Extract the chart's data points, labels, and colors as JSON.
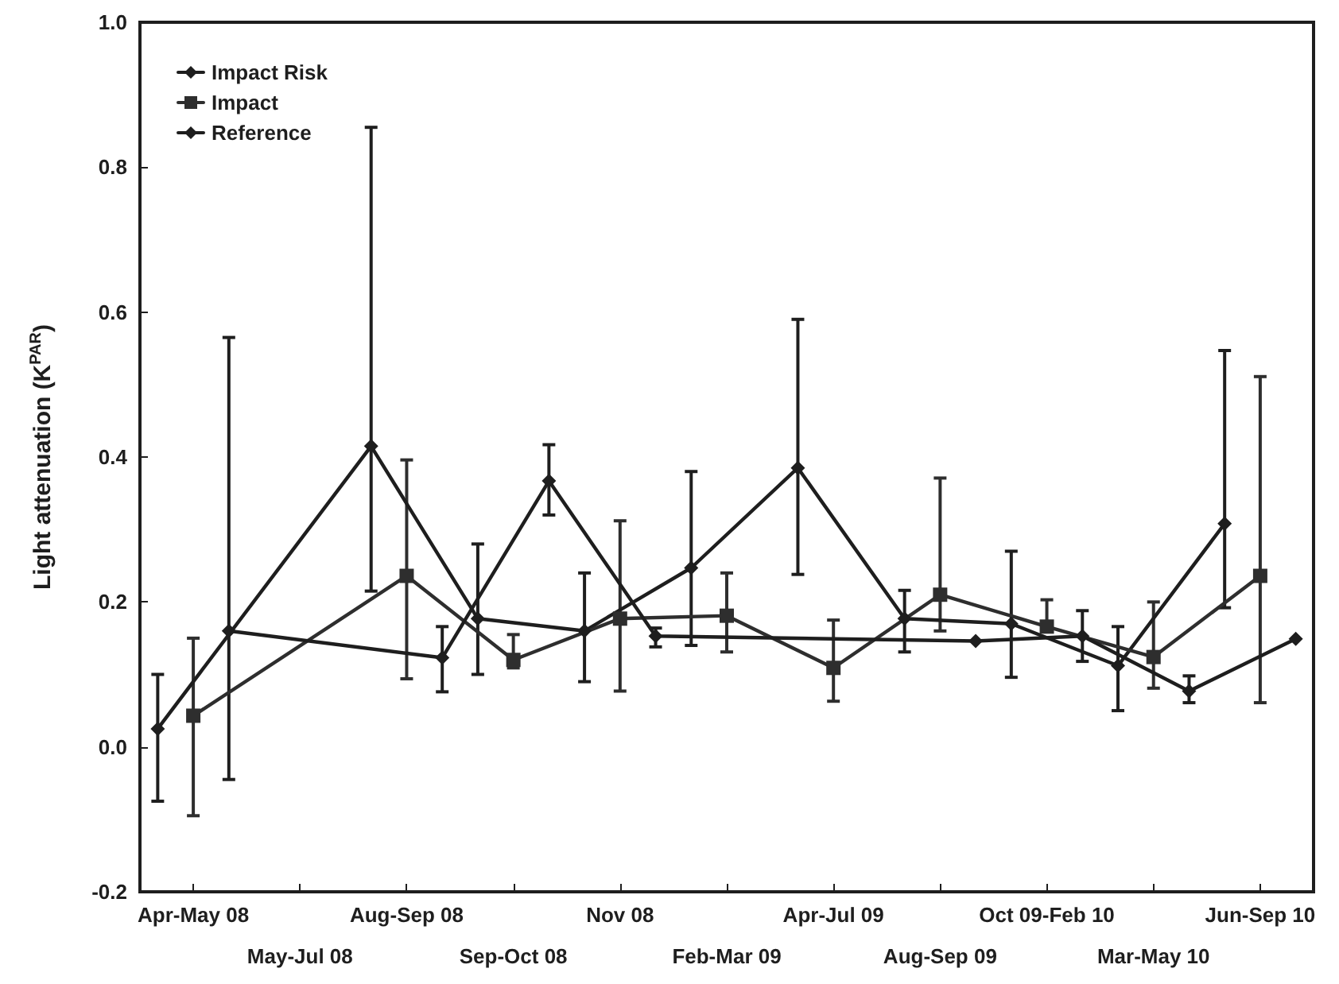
{
  "chart_data": {
    "type": "line",
    "ylabel": "Light attenuation (K$^{PAR}$)",
    "categories": [
      "Apr-May 08",
      "May-Jul 08",
      "Aug-Sep 08",
      "Sep-Oct 08",
      "Nov 08",
      "Feb-Mar 09",
      "Apr-Jul 09",
      "Aug-Sep 09",
      "Oct 09-Feb 10",
      "Mar-May 10",
      "Jun-Sep 10"
    ],
    "ylim": [
      -0.2,
      1.0
    ],
    "yticks": [
      -0.2,
      {
        "value": 0,
        "label": "0.0"
      },
      0.2,
      0.4,
      0.6,
      0.8,
      {
        "value": 1,
        "label": "1.0"
      }
    ],
    "grid": false,
    "legend": "top left",
    "line_style": "solid",
    "series": [
      {
        "name": "Impact Risk",
        "color": "#1e1e1e",
        "marker": "diamond",
        "values": [
          0.025,
          null,
          0.415,
          0.177,
          0.16,
          0.247,
          0.385,
          0.177,
          0.17,
          0.112,
          0.308
        ],
        "errors": [
          [
            -0.075,
            0.1
          ],
          null,
          [
            0.215,
            0.855
          ],
          [
            0.1,
            0.28
          ],
          [
            0.09,
            0.24
          ],
          [
            0.14,
            0.38
          ],
          [
            0.238,
            0.59
          ],
          [
            0.131,
            0.216
          ],
          [
            0.096,
            0.27
          ],
          [
            0.05,
            0.166
          ],
          [
            0.192,
            0.547
          ]
        ]
      },
      {
        "name": "Impact",
        "color": "#2e2e2e",
        "marker": "square",
        "values": [
          0.043,
          null,
          0.236,
          0.12,
          0.177,
          0.181,
          0.109,
          0.21,
          0.166,
          0.124,
          0.236
        ],
        "errors": [
          [
            -0.095,
            0.15
          ],
          null,
          [
            0.094,
            0.396
          ],
          [
            0.109,
            0.155
          ],
          [
            0.077,
            0.312
          ],
          [
            0.131,
            0.24
          ],
          [
            0.063,
            0.175
          ],
          [
            0.16,
            0.371
          ],
          [
            0.16,
            0.203
          ],
          [
            0.081,
            0.2
          ],
          [
            0.061,
            0.511
          ]
        ]
      },
      {
        "name": "Reference",
        "color": "#1e1e1e",
        "marker": "diamond",
        "values": [
          0.16,
          null,
          0.123,
          0.367,
          0.153,
          null,
          null,
          0.146,
          0.153,
          0.077,
          0.149
        ],
        "errors": [
          [
            -0.045,
            0.565
          ],
          null,
          [
            0.076,
            0.166
          ],
          [
            0.32,
            0.417
          ],
          [
            0.138,
            0.164
          ],
          null,
          null,
          null,
          [
            0.118,
            0.188
          ],
          [
            0.061,
            0.098
          ],
          null
        ]
      }
    ]
  }
}
